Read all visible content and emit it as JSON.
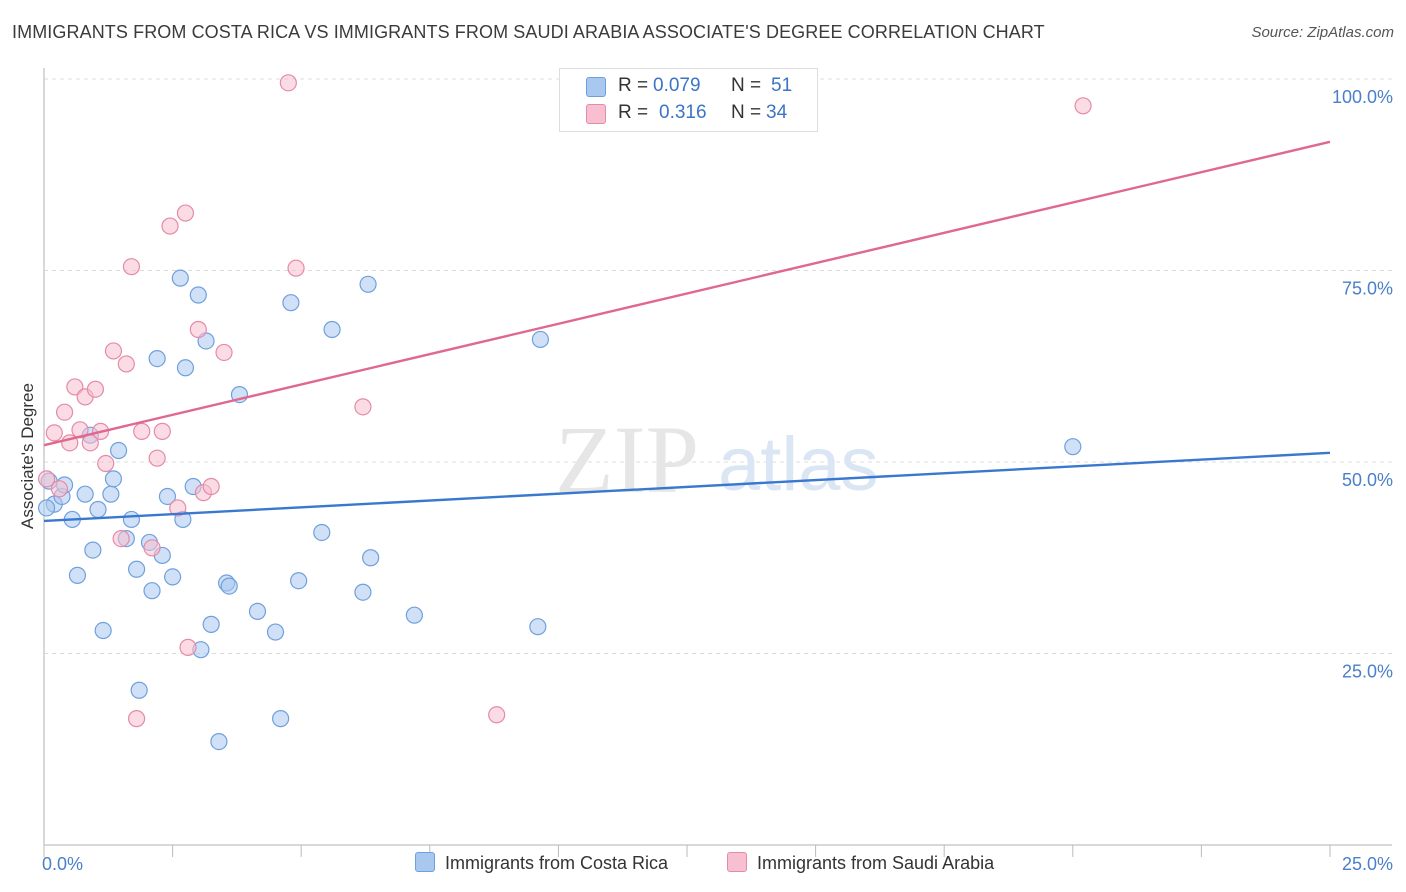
{
  "title": "IMMIGRANTS FROM COSTA RICA VS IMMIGRANTS FROM SAUDI ARABIA ASSOCIATE'S DEGREE CORRELATION CHART",
  "source": "Source: ZipAtlas.com",
  "watermark": {
    "zip": "ZIP",
    "atlas": "atlas"
  },
  "legend": {
    "rows": [
      {
        "r_label": "R =",
        "r_value": "0.079",
        "n_label": "N =",
        "n_value": "51",
        "color": "#a9c8f0",
        "border": "#6fa0dd"
      },
      {
        "r_label": "R =",
        "r_value": "0.316",
        "n_label": "N =",
        "n_value": "34",
        "color": "#f7bfd0",
        "border": "#e58aa8"
      }
    ]
  },
  "colors": {
    "blue_fill": "#a9c8f0",
    "blue_stroke": "#6fa0dd",
    "blue_line": "#3a78d0",
    "pink_fill": "#f7bfd0",
    "pink_stroke": "#e58aa8",
    "pink_line": "#e06890",
    "grid": "#dcdcdc",
    "tick_text": "#4a7fc9"
  },
  "chart_data": {
    "type": "scatter",
    "title": "IMMIGRANTS FROM COSTA RICA VS IMMIGRANTS FROM SAUDI ARABIA ASSOCIATE'S DEGREE CORRELATION CHART",
    "xlabel": "",
    "ylabel": "Associate's Degree",
    "xlim": [
      0,
      25
    ],
    "ylim": [
      0,
      101
    ],
    "x_tick_labels": [
      "0.0%",
      "25.0%"
    ],
    "y_ticks": [
      25,
      50,
      75,
      100
    ],
    "y_tick_labels": [
      "25.0%",
      "50.0%",
      "75.0%",
      "100.0%"
    ],
    "grid": true,
    "series": [
      {
        "name": "Immigrants from Costa Rica",
        "trend": {
          "start": [
            0,
            42.3
          ],
          "end": [
            25,
            51.2
          ]
        },
        "points": [
          [
            0.1,
            47.5
          ],
          [
            0.2,
            44.5
          ],
          [
            0.35,
            45.5
          ],
          [
            0.4,
            47.0
          ],
          [
            0.55,
            42.5
          ],
          [
            0.65,
            35.2
          ],
          [
            0.8,
            45.8
          ],
          [
            0.9,
            53.5
          ],
          [
            0.95,
            38.5
          ],
          [
            1.05,
            43.8
          ],
          [
            1.15,
            28.0
          ],
          [
            1.3,
            45.8
          ],
          [
            1.35,
            47.8
          ],
          [
            1.45,
            51.5
          ],
          [
            1.6,
            40.0
          ],
          [
            1.7,
            42.5
          ],
          [
            1.8,
            36.0
          ],
          [
            1.85,
            20.2
          ],
          [
            2.05,
            39.5
          ],
          [
            2.1,
            33.2
          ],
          [
            2.2,
            63.5
          ],
          [
            2.3,
            37.8
          ],
          [
            2.4,
            45.5
          ],
          [
            2.5,
            35.0
          ],
          [
            2.65,
            74.0
          ],
          [
            2.7,
            42.5
          ],
          [
            2.75,
            62.3
          ],
          [
            2.9,
            46.8
          ],
          [
            3.0,
            71.8
          ],
          [
            3.05,
            25.5
          ],
          [
            3.15,
            65.8
          ],
          [
            3.25,
            28.8
          ],
          [
            3.4,
            13.5
          ],
          [
            3.55,
            34.2
          ],
          [
            3.6,
            33.8
          ],
          [
            3.8,
            58.8
          ],
          [
            4.15,
            30.5
          ],
          [
            4.5,
            27.8
          ],
          [
            4.6,
            16.5
          ],
          [
            4.8,
            70.8
          ],
          [
            4.95,
            34.5
          ],
          [
            5.4,
            40.8
          ],
          [
            5.6,
            67.3
          ],
          [
            6.2,
            33.0
          ],
          [
            6.3,
            73.2
          ],
          [
            6.35,
            37.5
          ],
          [
            7.2,
            30.0
          ],
          [
            9.6,
            28.5
          ],
          [
            9.65,
            66.0
          ],
          [
            20.0,
            52.0
          ],
          [
            0.05,
            44.0
          ]
        ]
      },
      {
        "name": "Immigrants from Saudi Arabia",
        "trend": {
          "start": [
            0,
            52.2
          ],
          "end": [
            25,
            91.8
          ]
        },
        "points": [
          [
            0.05,
            47.8
          ],
          [
            0.2,
            53.8
          ],
          [
            0.4,
            56.5
          ],
          [
            0.5,
            52.5
          ],
          [
            0.6,
            59.8
          ],
          [
            0.7,
            54.2
          ],
          [
            0.8,
            58.5
          ],
          [
            0.9,
            52.5
          ],
          [
            1.0,
            59.5
          ],
          [
            1.1,
            54.0
          ],
          [
            1.2,
            49.8
          ],
          [
            1.35,
            64.5
          ],
          [
            1.5,
            40.0
          ],
          [
            1.6,
            62.8
          ],
          [
            1.7,
            75.5
          ],
          [
            1.8,
            16.5
          ],
          [
            1.9,
            54.0
          ],
          [
            2.1,
            38.8
          ],
          [
            2.2,
            50.5
          ],
          [
            2.3,
            54.0
          ],
          [
            2.45,
            80.8
          ],
          [
            2.6,
            44.0
          ],
          [
            2.75,
            82.5
          ],
          [
            2.8,
            25.8
          ],
          [
            3.0,
            67.3
          ],
          [
            3.1,
            46.0
          ],
          [
            3.25,
            46.8
          ],
          [
            3.5,
            64.3
          ],
          [
            4.75,
            99.5
          ],
          [
            4.9,
            75.3
          ],
          [
            6.2,
            57.2
          ],
          [
            8.8,
            17.0
          ],
          [
            20.2,
            96.5
          ],
          [
            0.3,
            46.5
          ]
        ]
      }
    ]
  },
  "bottom_legend": [
    {
      "label": "Immigrants from Costa Rica"
    },
    {
      "label": "Immigrants from Saudi Arabia"
    }
  ]
}
